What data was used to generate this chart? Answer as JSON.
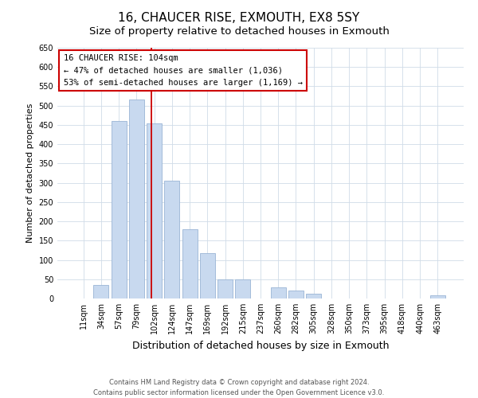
{
  "title": "16, CHAUCER RISE, EXMOUTH, EX8 5SY",
  "subtitle": "Size of property relative to detached houses in Exmouth",
  "xlabel": "Distribution of detached houses by size in Exmouth",
  "ylabel": "Number of detached properties",
  "bar_labels": [
    "11sqm",
    "34sqm",
    "57sqm",
    "79sqm",
    "102sqm",
    "124sqm",
    "147sqm",
    "169sqm",
    "192sqm",
    "215sqm",
    "237sqm",
    "260sqm",
    "282sqm",
    "305sqm",
    "328sqm",
    "350sqm",
    "373sqm",
    "395sqm",
    "418sqm",
    "440sqm",
    "463sqm"
  ],
  "bar_values": [
    0,
    35,
    460,
    515,
    455,
    305,
    180,
    118,
    50,
    50,
    0,
    28,
    20,
    13,
    0,
    0,
    0,
    0,
    0,
    0,
    8
  ],
  "bar_color": "#c8d9ef",
  "bar_edge_color": "#9ab5d5",
  "ylim": [
    0,
    650
  ],
  "yticks": [
    0,
    50,
    100,
    150,
    200,
    250,
    300,
    350,
    400,
    450,
    500,
    550,
    600,
    650
  ],
  "property_line_color": "#cc0000",
  "annotation_title": "16 CHAUCER RISE: 104sqm",
  "annotation_line1": "← 47% of detached houses are smaller (1,036)",
  "annotation_line2": "53% of semi-detached houses are larger (1,169) →",
  "annotation_box_color": "#ffffff",
  "annotation_box_edge": "#cc0000",
  "footer_line1": "Contains HM Land Registry data © Crown copyright and database right 2024.",
  "footer_line2": "Contains public sector information licensed under the Open Government Licence v3.0.",
  "title_fontsize": 11,
  "subtitle_fontsize": 9.5,
  "xlabel_fontsize": 9,
  "ylabel_fontsize": 8,
  "tick_fontsize": 7,
  "annotation_fontsize": 7.5,
  "footer_fontsize": 6
}
